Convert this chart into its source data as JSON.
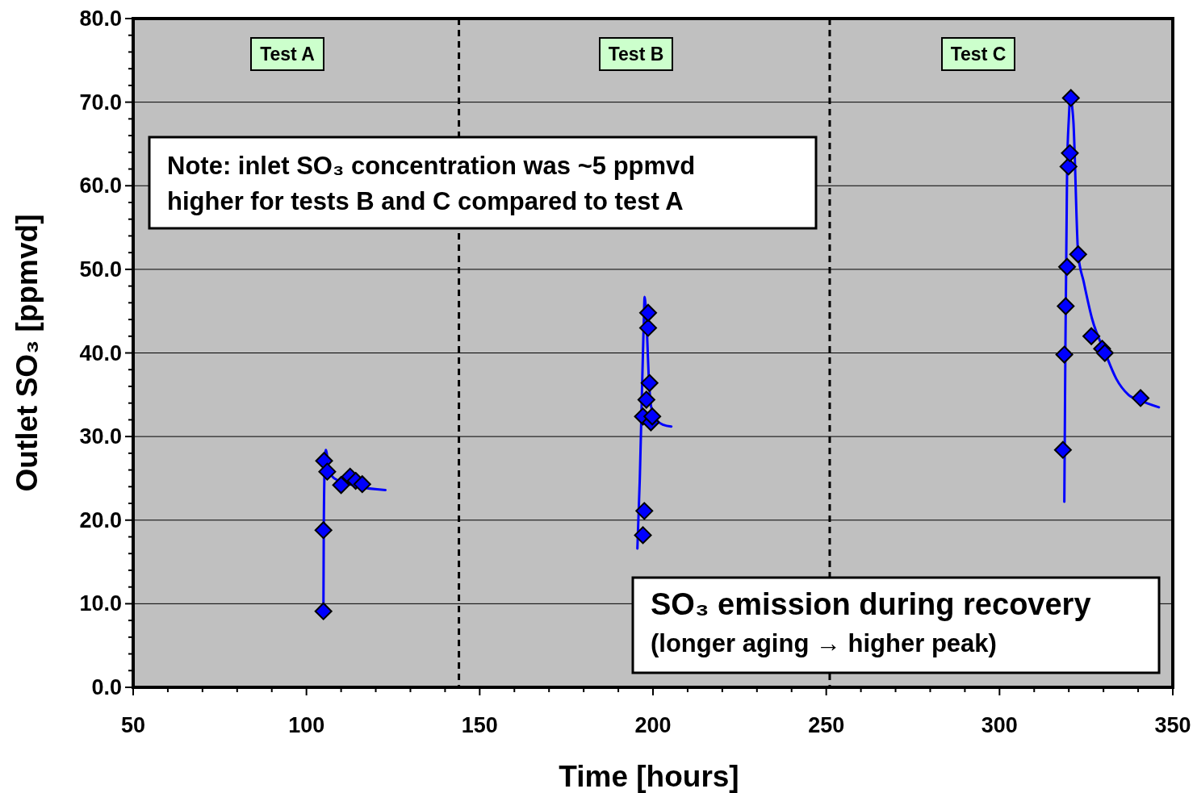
{
  "chart_data": {
    "type": "scatter",
    "xlabel": "Time [hours]",
    "ylabel": "Outlet SO₃ [ppmvd]",
    "xlim": [
      50,
      350
    ],
    "ylim": [
      0,
      80
    ],
    "xticks": [
      50,
      {
        "value": 60,
        "label": null
      },
      {
        "value": 70,
        "label": null
      },
      {
        "value": 80,
        "label": null
      },
      {
        "value": 90,
        "label": null
      },
      100,
      {
        "value": 110,
        "label": null
      },
      {
        "value": 120,
        "label": null
      },
      {
        "value": 130,
        "label": null
      },
      {
        "value": 140,
        "label": null
      },
      150,
      {
        "value": 160,
        "label": null
      },
      {
        "value": 170,
        "label": null
      },
      {
        "value": 180,
        "label": null
      },
      {
        "value": 190,
        "label": null
      },
      200,
      {
        "value": 210,
        "label": null
      },
      {
        "value": 220,
        "label": null
      },
      {
        "value": 230,
        "label": null
      },
      {
        "value": 240,
        "label": null
      },
      250,
      {
        "value": 260,
        "label": null
      },
      {
        "value": 270,
        "label": null
      },
      {
        "value": 280,
        "label": null
      },
      {
        "value": 290,
        "label": null
      },
      300,
      {
        "value": 310,
        "label": null
      },
      {
        "value": 320,
        "label": null
      },
      {
        "value": 330,
        "label": null
      },
      {
        "value": 340,
        "label": null
      },
      350
    ],
    "yticks": [
      {
        "value": 0,
        "label": "0.0"
      },
      {
        "value": 2,
        "label": null
      },
      {
        "value": 4,
        "label": null
      },
      {
        "value": 6,
        "label": null
      },
      {
        "value": 8,
        "label": null
      },
      {
        "value": 10,
        "label": "10.0"
      },
      {
        "value": 12,
        "label": null
      },
      {
        "value": 14,
        "label": null
      },
      {
        "value": 16,
        "label": null
      },
      {
        "value": 18,
        "label": null
      },
      {
        "value": 20,
        "label": "20.0"
      },
      {
        "value": 22,
        "label": null
      },
      {
        "value": 24,
        "label": null
      },
      {
        "value": 26,
        "label": null
      },
      {
        "value": 28,
        "label": null
      },
      {
        "value": 30,
        "label": "30.0"
      },
      {
        "value": 32,
        "label": null
      },
      {
        "value": 34,
        "label": null
      },
      {
        "value": 36,
        "label": null
      },
      {
        "value": 38,
        "label": null
      },
      {
        "value": 40,
        "label": "40.0"
      },
      {
        "value": 42,
        "label": null
      },
      {
        "value": 44,
        "label": null
      },
      {
        "value": 46,
        "label": null
      },
      {
        "value": 48,
        "label": null
      },
      {
        "value": 50,
        "label": "50.0"
      },
      {
        "value": 52,
        "label": null
      },
      {
        "value": 54,
        "label": null
      },
      {
        "value": 56,
        "label": null
      },
      {
        "value": 58,
        "label": null
      },
      {
        "value": 60,
        "label": "60.0"
      },
      {
        "value": 62,
        "label": null
      },
      {
        "value": 64,
        "label": null
      },
      {
        "value": 66,
        "label": null
      },
      {
        "value": 68,
        "label": null
      },
      {
        "value": 70,
        "label": "70.0"
      },
      {
        "value": 72,
        "label": null
      },
      {
        "value": 74,
        "label": null
      },
      {
        "value": 76,
        "label": null
      },
      {
        "value": 78,
        "label": null
      },
      {
        "value": 80,
        "label": "80.0"
      }
    ],
    "grid": "y",
    "series": [
      {
        "type": "line",
        "color": "#0000ff",
        "marker": "none",
        "line_style": "solid",
        "x": [
          104.9,
          105.0,
          105.3,
          105.6,
          106.5,
          108,
          111,
          115,
          122.8
        ],
        "values": [
          9.1,
          19,
          27,
          28.4,
          26,
          25,
          24.5,
          24,
          23.6
        ]
      },
      {
        "type": "line",
        "color": "#0000ff",
        "marker": "none",
        "line_style": "solid",
        "x": [
          195.5,
          196.2,
          196.8,
          197.3,
          197.6,
          198.2,
          198.8,
          199.5,
          201,
          203,
          205.3
        ],
        "values": [
          16.6,
          25,
          35,
          43,
          46.7,
          43,
          37,
          33.5,
          32,
          31.4,
          31.2
        ]
      },
      {
        "type": "line",
        "color": "#0000ff",
        "marker": "none",
        "line_style": "solid",
        "x": [
          318.7,
          319.0,
          319.5,
          320.0,
          320.4,
          321.3,
          322.7,
          324.3,
          326.7,
          330.5,
          333.7,
          337.2,
          340.7,
          346.0
        ],
        "values": [
          22.2,
          40,
          62,
          68,
          70.5,
          67.8,
          51.8,
          48.5,
          44.1,
          40,
          36.9,
          35,
          34.3,
          33.5
        ]
      },
      {
        "color": "#0000ff",
        "marker": "diamond",
        "x": [
          104.9,
          104.9,
          105.1,
          106.0,
          110.0,
          112.6,
          114.2,
          116.1,
          197.1,
          197.5,
          197.1,
          198.1,
          199.0,
          199.4,
          199.8,
          198.6,
          198.6,
          318.3,
          318.7,
          319.1,
          319.5,
          319.9,
          320.3,
          320.6,
          322.7,
          326.5,
          329.6,
          330.4,
          340.7
        ],
        "values": [
          9.1,
          18.8,
          27.1,
          25.8,
          24.2,
          25.2,
          24.7,
          24.3,
          18.2,
          21.1,
          32.4,
          34.4,
          36.4,
          31.7,
          32.4,
          43.0,
          44.8,
          28.4,
          39.8,
          45.6,
          50.3,
          62.3,
          63.9,
          70.5,
          51.8,
          42.0,
          40.5,
          40.0,
          34.6
        ]
      }
    ],
    "ref_lines": [
      {
        "axis": "x",
        "value": 144,
        "color": "#000000",
        "line_style": "dashed"
      },
      {
        "axis": "x",
        "value": 251,
        "color": "#000000",
        "line_style": "dashed"
      }
    ],
    "annotations": [
      "Test A",
      "Test B",
      "Test C",
      "Note: inlet SO₃ concentration was ~5 ppmvd\nhigher for tests B and C compared to test A",
      "SO₃ emission during recovery\n(longer aging → higher peak)"
    ]
  }
}
